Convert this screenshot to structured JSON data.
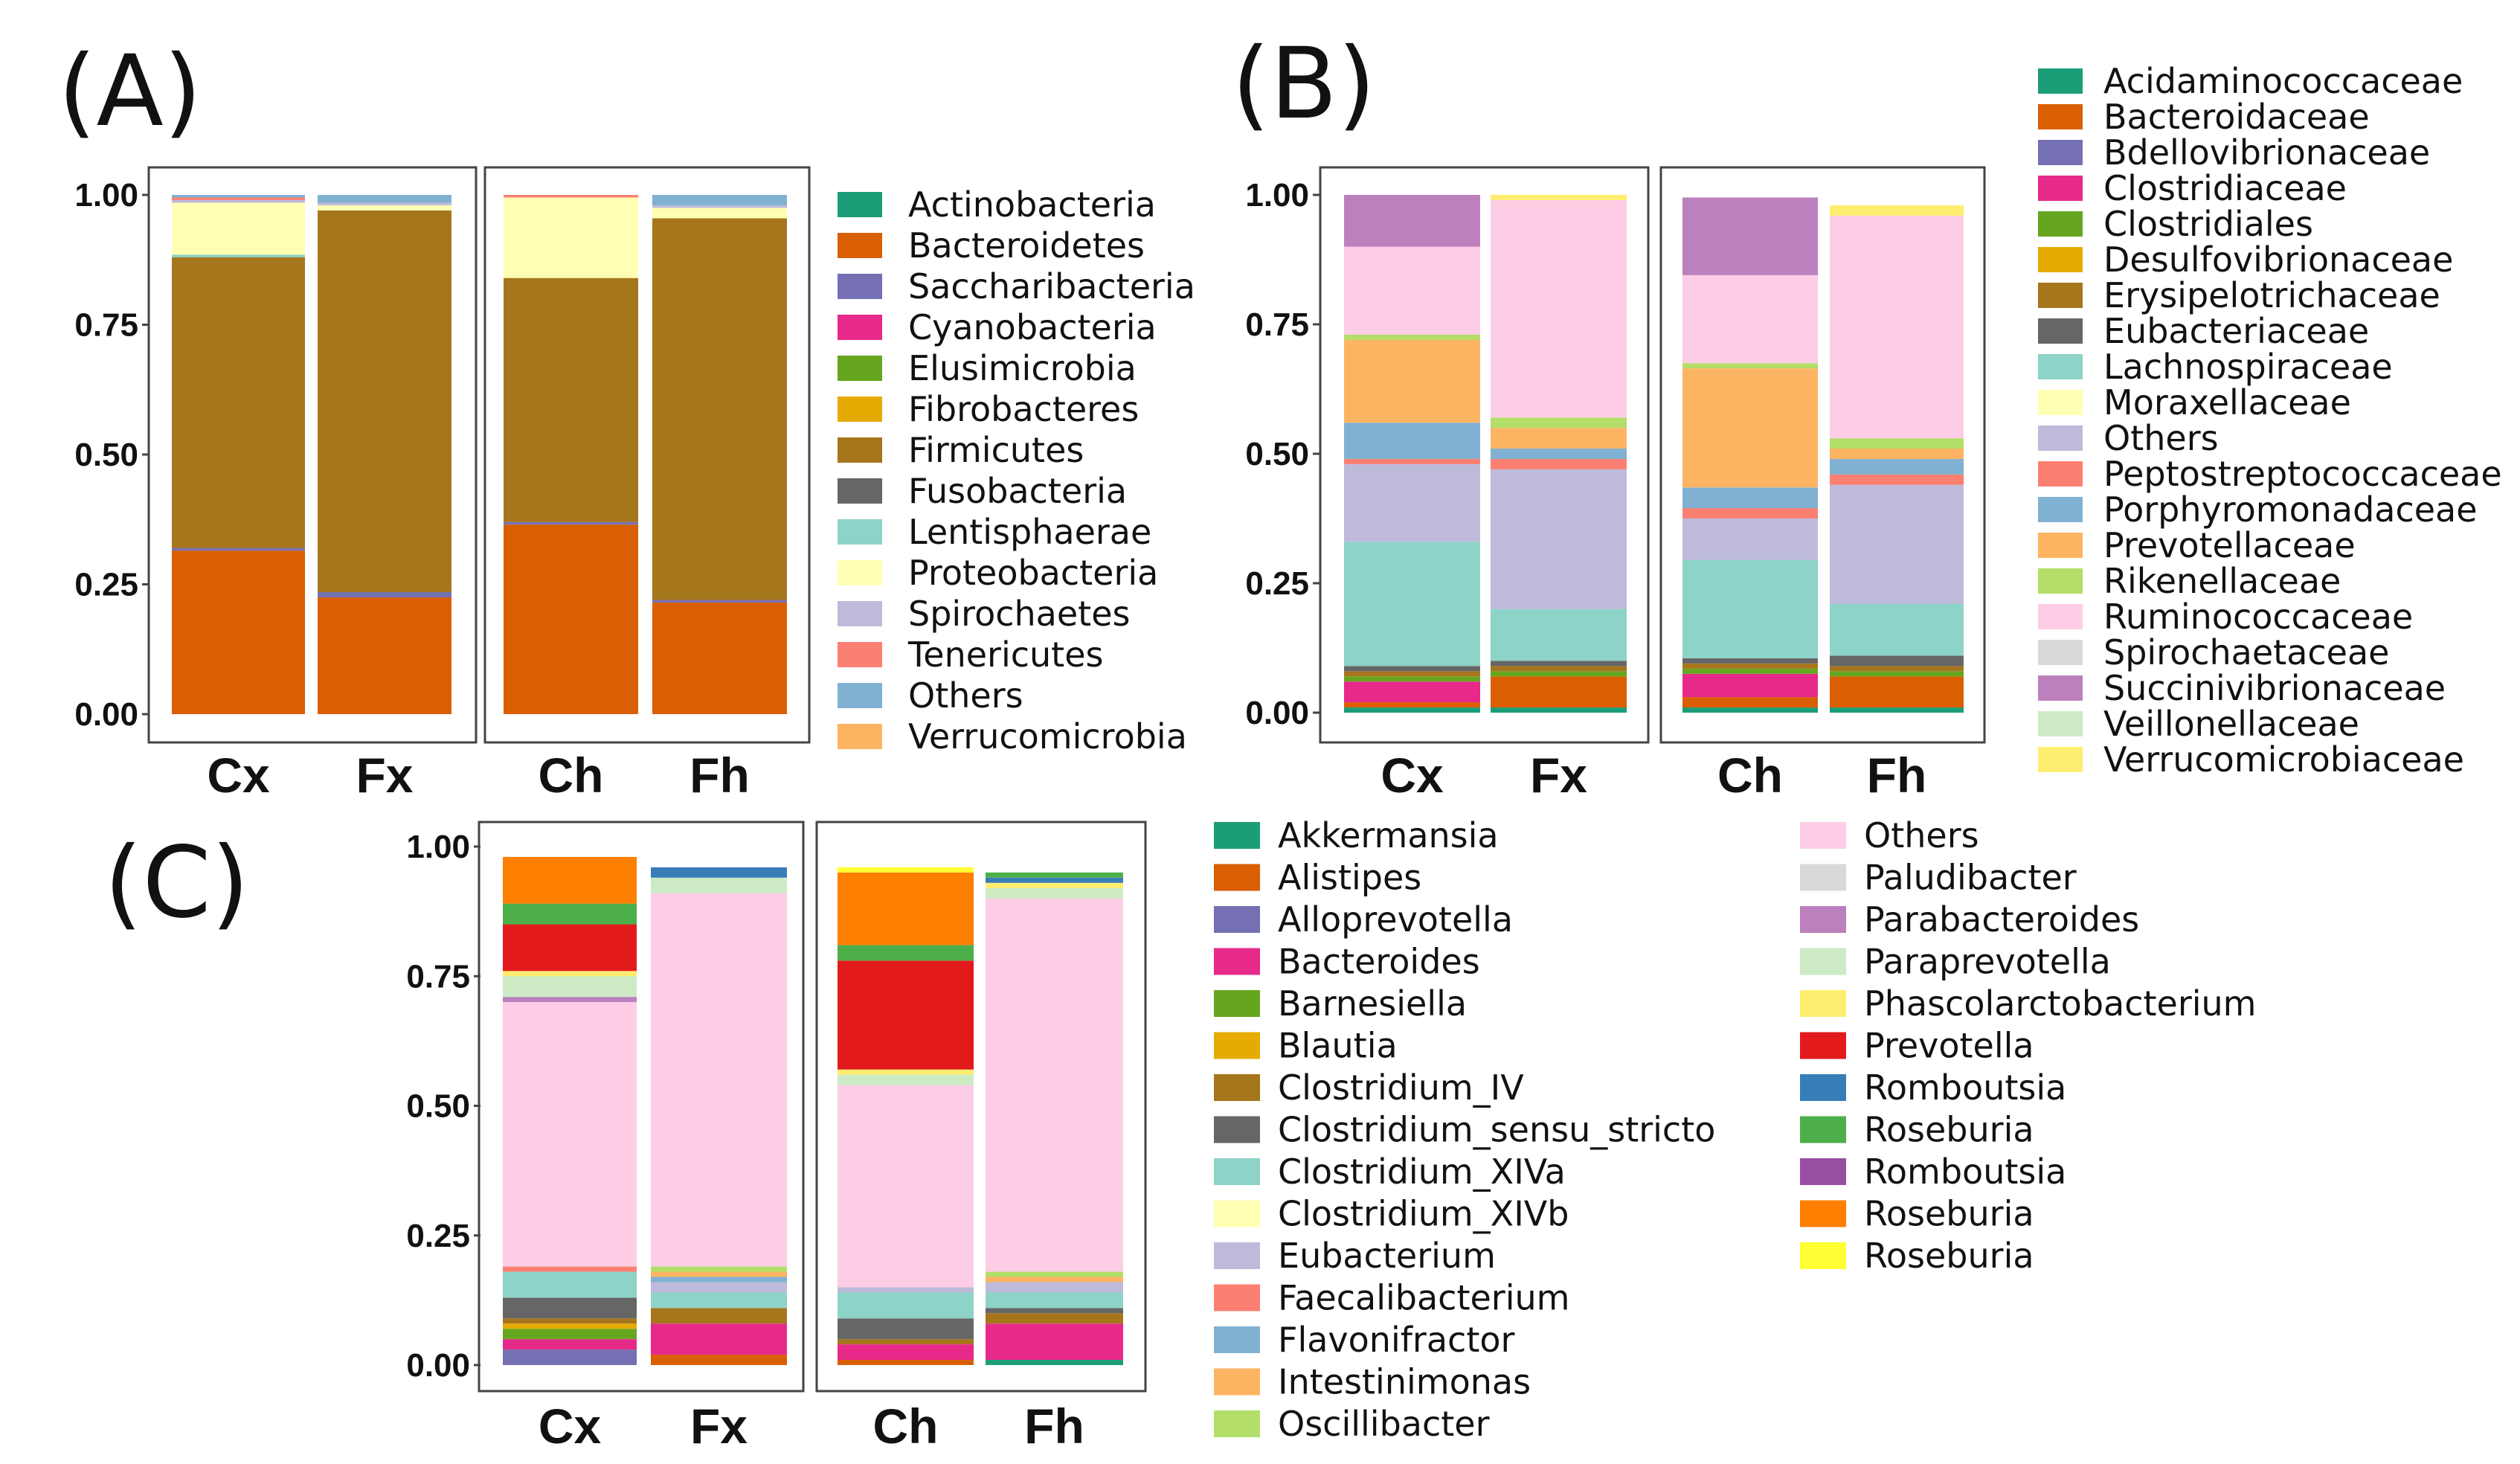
{
  "palette": {
    "teal": "#1b9e77",
    "orange": "#d95f02",
    "purple": "#7570b3",
    "magenta": "#e7298a",
    "green": "#66a61e",
    "gold": "#e6ab02",
    "brown": "#a6761d",
    "gray": "#666666",
    "mint": "#8dd3c7",
    "cream": "#ffffb3",
    "lavender": "#bebada",
    "salmon": "#fb8072",
    "skyblue": "#80b1d3",
    "lightorange": "#fdb462",
    "lightgreen": "#b3de69",
    "pink": "#fccde5",
    "lightgray": "#d9d9d9",
    "orchid": "#bc80bd",
    "palegreen": "#ccebc5",
    "paleyellow": "#ffed6f",
    "red": "#e31a1c",
    "blue": "#377eb8",
    "green2": "#4daf4a",
    "purple2": "#984ea3",
    "orange2": "#ff7f00",
    "yellow": "#ffff33"
  },
  "chart_data": [
    {
      "panel": "(A)",
      "type": "bar",
      "stacked": true,
      "ylim": [
        0,
        1
      ],
      "yticks": [
        "0.00",
        "0.25",
        "0.50",
        "0.75",
        "1.00"
      ],
      "facets": [
        [
          "Cx",
          "Fx"
        ],
        [
          "Ch",
          "Fh"
        ]
      ],
      "categories": [
        "Cx",
        "Fx",
        "Ch",
        "Fh"
      ],
      "legend_position": "right",
      "series": [
        {
          "name": "Actinobacteria",
          "color": "#1b9e77",
          "values": [
            0,
            0,
            0,
            0
          ]
        },
        {
          "name": "Bacteroidetes",
          "color": "#d95f02",
          "values": [
            0.315,
            0.225,
            0.365,
            0.215
          ]
        },
        {
          "name": "Saccharibacteria",
          "color": "#7570b3",
          "values": [
            0.005,
            0.01,
            0.005,
            0.005
          ]
        },
        {
          "name": "Cyanobacteria",
          "color": "#e7298a",
          "values": [
            0,
            0,
            0,
            0
          ]
        },
        {
          "name": "Elusimicrobia",
          "color": "#66a61e",
          "values": [
            0,
            0,
            0,
            0
          ]
        },
        {
          "name": "Fibrobacteres",
          "color": "#e6ab02",
          "values": [
            0,
            0,
            0,
            0
          ]
        },
        {
          "name": "Firmicutes",
          "color": "#a6761d",
          "values": [
            0.56,
            0.735,
            0.47,
            0.735
          ]
        },
        {
          "name": "Fusobacteria",
          "color": "#666666",
          "values": [
            0,
            0,
            0,
            0
          ]
        },
        {
          "name": "Lentisphaerae",
          "color": "#8dd3c7",
          "values": [
            0.005,
            0,
            0,
            0
          ]
        },
        {
          "name": "Proteobacteria",
          "color": "#ffffb3",
          "values": [
            0.1,
            0.01,
            0.155,
            0.02
          ]
        },
        {
          "name": "Spirochaetes",
          "color": "#bebada",
          "values": [
            0.005,
            0.005,
            0,
            0.005
          ]
        },
        {
          "name": "Tenericutes",
          "color": "#fb8072",
          "values": [
            0.005,
            0,
            0.005,
            0
          ]
        },
        {
          "name": "Others",
          "color": "#80b1d3",
          "values": [
            0.005,
            0.015,
            0,
            0.02
          ]
        },
        {
          "name": "Verrucomicrobia",
          "color": "#fdb462",
          "values": [
            0,
            0,
            0,
            0
          ]
        }
      ]
    },
    {
      "panel": "(B)",
      "type": "bar",
      "stacked": true,
      "ylim": [
        0,
        1
      ],
      "yticks": [
        "0.00",
        "0.25",
        "0.50",
        "0.75",
        "1.00"
      ],
      "facets": [
        [
          "Cx",
          "Fx"
        ],
        [
          "Ch",
          "Fh"
        ]
      ],
      "categories": [
        "Cx",
        "Fx",
        "Ch",
        "Fh"
      ],
      "legend_position": "right",
      "series": [
        {
          "name": "Acidaminococcaceae",
          "color": "#1b9e77",
          "values": [
            0.01,
            0.01,
            0.01,
            0.01
          ]
        },
        {
          "name": "Bacteroidaceae",
          "color": "#d95f02",
          "values": [
            0.01,
            0.06,
            0.02,
            0.06
          ]
        },
        {
          "name": "Bdellovibrionaceae",
          "color": "#7570b3",
          "values": [
            0,
            0,
            0,
            0
          ]
        },
        {
          "name": "Clostridiaceae",
          "color": "#e7298a",
          "values": [
            0.04,
            0,
            0.045,
            0
          ]
        },
        {
          "name": "Clostridiales",
          "color": "#66a61e",
          "values": [
            0.01,
            0.01,
            0.01,
            0.01
          ]
        },
        {
          "name": "Desulfovibrionaceae",
          "color": "#e6ab02",
          "values": [
            0,
            0,
            0,
            0
          ]
        },
        {
          "name": "Erysipelotrichaceae",
          "color": "#a6761d",
          "values": [
            0.01,
            0.01,
            0.01,
            0.01
          ]
        },
        {
          "name": "Eubacteriaceae",
          "color": "#666666",
          "values": [
            0.01,
            0.01,
            0.01,
            0.02
          ]
        },
        {
          "name": "Lachnospiraceae",
          "color": "#8dd3c7",
          "values": [
            0.24,
            0.1,
            0.19,
            0.1
          ]
        },
        {
          "name": "Moraxellaceae",
          "color": "#ffffb3",
          "values": [
            0,
            0,
            0,
            0
          ]
        },
        {
          "name": "Others",
          "color": "#bebada",
          "values": [
            0.15,
            0.27,
            0.08,
            0.23
          ]
        },
        {
          "name": "Peptostreptococcaceae",
          "color": "#fb8072",
          "values": [
            0.01,
            0.02,
            0.02,
            0.02
          ]
        },
        {
          "name": "Porphyromonadaceae",
          "color": "#80b1d3",
          "values": [
            0.07,
            0.02,
            0.04,
            0.03
          ]
        },
        {
          "name": "Prevotellaceae",
          "color": "#fdb462",
          "values": [
            0.16,
            0.04,
            0.23,
            0.02
          ]
        },
        {
          "name": "Rikenellaceae",
          "color": "#b3de69",
          "values": [
            0.01,
            0.02,
            0.01,
            0.02
          ]
        },
        {
          "name": "Ruminococcaceae",
          "color": "#fccde5",
          "values": [
            0.17,
            0.42,
            0.17,
            0.43
          ]
        },
        {
          "name": "Spirochaetaceae",
          "color": "#d9d9d9",
          "values": [
            0,
            0,
            0,
            0
          ]
        },
        {
          "name": "Succinivibrionaceae",
          "color": "#bc80bd",
          "values": [
            0.1,
            0,
            0.15,
            0
          ]
        },
        {
          "name": "Veillonellaceae",
          "color": "#ccebc5",
          "values": [
            0,
            0,
            0,
            0
          ]
        },
        {
          "name": "Verrucomicrobiaceae",
          "color": "#ffed6f",
          "values": [
            0,
            0.01,
            0,
            0.02
          ]
        }
      ]
    },
    {
      "panel": "(C)",
      "type": "bar",
      "stacked": true,
      "ylim": [
        0,
        1
      ],
      "yticks": [
        "0.00",
        "0.25",
        "0.50",
        "0.75",
        "1.00"
      ],
      "facets": [
        [
          "Cx",
          "Fx"
        ],
        [
          "Ch",
          "Fh"
        ]
      ],
      "categories": [
        "Cx",
        "Fx",
        "Ch",
        "Fh"
      ],
      "legend_position": "right",
      "series": [
        {
          "name": "Akkermansia",
          "color": "#1b9e77",
          "values": [
            0,
            0,
            0,
            0.01
          ]
        },
        {
          "name": "Alistipes",
          "color": "#d95f02",
          "values": [
            0,
            0.02,
            0.01,
            0
          ]
        },
        {
          "name": "Alloprevotella",
          "color": "#7570b3",
          "values": [
            0.03,
            0,
            0,
            0
          ]
        },
        {
          "name": "Bacteroides",
          "color": "#e7298a",
          "values": [
            0.02,
            0.06,
            0.03,
            0.07
          ]
        },
        {
          "name": "Barnesiella",
          "color": "#66a61e",
          "values": [
            0.02,
            0,
            0,
            0
          ]
        },
        {
          "name": "Blautia",
          "color": "#e6ab02",
          "values": [
            0.01,
            0,
            0,
            0
          ]
        },
        {
          "name": "Clostridium_IV",
          "color": "#a6761d",
          "values": [
            0.01,
            0.03,
            0.01,
            0.02
          ]
        },
        {
          "name": "Clostridium_sensu_stricto",
          "color": "#666666",
          "values": [
            0.04,
            0,
            0.04,
            0.01
          ]
        },
        {
          "name": "Clostridium_XIVa",
          "color": "#8dd3c7",
          "values": [
            0.05,
            0.03,
            0.05,
            0.03
          ]
        },
        {
          "name": "Clostridium_XIVb",
          "color": "#ffffb3",
          "values": [
            0,
            0,
            0,
            0
          ]
        },
        {
          "name": "Eubacterium",
          "color": "#bebada",
          "values": [
            0,
            0.02,
            0.01,
            0.02
          ]
        },
        {
          "name": "Faecalibacterium",
          "color": "#fb8072",
          "values": [
            0.01,
            0,
            0,
            0
          ]
        },
        {
          "name": "Flavonifractor",
          "color": "#80b1d3",
          "values": [
            0,
            0.01,
            0,
            0
          ]
        },
        {
          "name": "Intestinimonas",
          "color": "#fdb462",
          "values": [
            0,
            0.01,
            0,
            0.01
          ]
        },
        {
          "name": "Oscillibacter",
          "color": "#b3de69",
          "values": [
            0,
            0.01,
            0,
            0.01
          ]
        },
        {
          "name": "Others",
          "color": "#fccde5",
          "values": [
            0.51,
            0.72,
            0.39,
            0.72
          ]
        },
        {
          "name": "Paludibacter",
          "color": "#d9d9d9",
          "values": [
            0,
            0,
            0,
            0
          ]
        },
        {
          "name": "Parabacteroides",
          "color": "#bc80bd",
          "values": [
            0.01,
            0,
            0,
            0
          ]
        },
        {
          "name": "Paraprevotella",
          "color": "#ccebc5",
          "values": [
            0.04,
            0.03,
            0.02,
            0.02
          ]
        },
        {
          "name": "Phascolarctobacterium",
          "color": "#ffed6f",
          "values": [
            0.01,
            0,
            0.01,
            0.01
          ]
        },
        {
          "name": "Prevotella",
          "color": "#e31a1c",
          "values": [
            0.09,
            0,
            0.21,
            0
          ]
        },
        {
          "name": "Romboutsia",
          "color": "#377eb8",
          "values": [
            0,
            0.02,
            0,
            0.01
          ]
        },
        {
          "name": "Roseburia",
          "color": "#4daf4a",
          "values": [
            0.04,
            0,
            0.03,
            0.01
          ]
        },
        {
          "name": "Romboutsia",
          "color": "#984ea3",
          "values": [
            0,
            0,
            0,
            0
          ]
        },
        {
          "name": "Roseburia",
          "color": "#ff7f00",
          "values": [
            0.09,
            0,
            0.14,
            0
          ]
        },
        {
          "name": "Roseburia",
          "color": "#ffff33",
          "values": [
            0,
            0,
            0.01,
            0
          ]
        }
      ]
    }
  ]
}
